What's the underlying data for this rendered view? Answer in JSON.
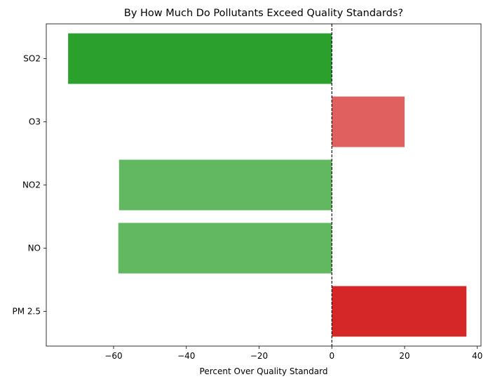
{
  "chart_data": {
    "type": "bar",
    "orientation": "horizontal",
    "title": "By How Much Do Pollutants Exceed Quality Standards?",
    "xlabel": "Percent Over Quality Standard",
    "ylabel": "",
    "categories": [
      "PM 2.5",
      "NO",
      "NO2",
      "O3",
      "SO2"
    ],
    "values": [
      37,
      -58.7,
      -58.5,
      20,
      -72.5
    ],
    "bar_colors": [
      "#d62728",
      "#61b861",
      "#61b861",
      "#e06060",
      "#2ca02c"
    ],
    "xlim": [
      -78.5,
      41
    ],
    "xticks": [
      -60,
      -40,
      -20,
      0,
      20,
      40
    ],
    "xtick_labels": [
      "−60",
      "−40",
      "−20",
      "0",
      "20",
      "40"
    ],
    "reference_line": {
      "x": 0,
      "style": "dashed",
      "color": "#000000"
    },
    "grid": false,
    "legend": "none"
  }
}
